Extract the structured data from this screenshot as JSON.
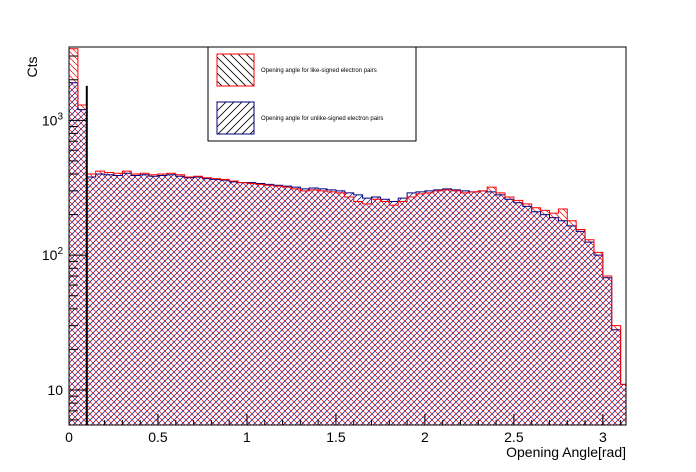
{
  "chart_data": {
    "type": "histogram",
    "xlabel": "Opening Angle[rad]",
    "ylabel": "Cts",
    "xlim": [
      0,
      3.13
    ],
    "ylim": [
      5.5,
      3500
    ],
    "yscale": "log",
    "x_ticks": [
      "0",
      "0.5",
      "1",
      "1.5",
      "2",
      "2.5",
      "3"
    ],
    "y_ticks": [
      {
        "mantissa": "10",
        "exponent": ""
      },
      {
        "mantissa": "10",
        "exponent": "2"
      },
      {
        "mantissa": "10",
        "exponent": "3"
      }
    ],
    "legend_position": "top-center",
    "series": [
      {
        "name": "Opening angle for like-signed electron pairs",
        "color": "#ff0000",
        "hatch": "backslash",
        "bins": [
          [
            0.0,
            3400
          ],
          [
            0.05,
            1300
          ],
          [
            0.1,
            400
          ],
          [
            0.15,
            420
          ],
          [
            0.2,
            410
          ],
          [
            0.25,
            405
          ],
          [
            0.3,
            420
          ],
          [
            0.35,
            400
          ],
          [
            0.4,
            405
          ],
          [
            0.45,
            395
          ],
          [
            0.5,
            400
          ],
          [
            0.55,
            405
          ],
          [
            0.6,
            395
          ],
          [
            0.65,
            380
          ],
          [
            0.7,
            385
          ],
          [
            0.75,
            375
          ],
          [
            0.8,
            370
          ],
          [
            0.85,
            365
          ],
          [
            0.9,
            355
          ],
          [
            0.95,
            345
          ],
          [
            1.0,
            340
          ],
          [
            1.05,
            335
          ],
          [
            1.1,
            330
          ],
          [
            1.15,
            325
          ],
          [
            1.2,
            320
          ],
          [
            1.25,
            310
          ],
          [
            1.3,
            300
          ],
          [
            1.35,
            305
          ],
          [
            1.4,
            300
          ],
          [
            1.45,
            295
          ],
          [
            1.5,
            290
          ],
          [
            1.55,
            270
          ],
          [
            1.6,
            250
          ],
          [
            1.65,
            240
          ],
          [
            1.7,
            260
          ],
          [
            1.75,
            250
          ],
          [
            1.8,
            235
          ],
          [
            1.85,
            250
          ],
          [
            1.9,
            270
          ],
          [
            1.95,
            285
          ],
          [
            2.0,
            290
          ],
          [
            2.05,
            300
          ],
          [
            2.1,
            305
          ],
          [
            2.15,
            300
          ],
          [
            2.2,
            290
          ],
          [
            2.25,
            295
          ],
          [
            2.3,
            300
          ],
          [
            2.35,
            320
          ],
          [
            2.4,
            290
          ],
          [
            2.45,
            270
          ],
          [
            2.5,
            255
          ],
          [
            2.55,
            240
          ],
          [
            2.6,
            225
          ],
          [
            2.65,
            215
          ],
          [
            2.7,
            205
          ],
          [
            2.75,
            220
          ],
          [
            2.8,
            180
          ],
          [
            2.85,
            155
          ],
          [
            2.9,
            130
          ],
          [
            2.95,
            105
          ],
          [
            3.0,
            70
          ],
          [
            3.05,
            30
          ],
          [
            3.1,
            11
          ]
        ]
      },
      {
        "name": "Opening angle for unlike-signed electron pairs",
        "color": "#000080",
        "hatch": "slash",
        "bins": [
          [
            0.0,
            1900
          ],
          [
            0.05,
            1200
          ],
          [
            0.1,
            380
          ],
          [
            0.15,
            400
          ],
          [
            0.2,
            395
          ],
          [
            0.25,
            390
          ],
          [
            0.3,
            405
          ],
          [
            0.35,
            390
          ],
          [
            0.4,
            395
          ],
          [
            0.45,
            385
          ],
          [
            0.5,
            390
          ],
          [
            0.55,
            395
          ],
          [
            0.6,
            385
          ],
          [
            0.65,
            375
          ],
          [
            0.7,
            380
          ],
          [
            0.75,
            370
          ],
          [
            0.8,
            365
          ],
          [
            0.85,
            360
          ],
          [
            0.9,
            350
          ],
          [
            0.95,
            345
          ],
          [
            1.0,
            345
          ],
          [
            1.05,
            340
          ],
          [
            1.1,
            335
          ],
          [
            1.15,
            330
          ],
          [
            1.2,
            325
          ],
          [
            1.25,
            320
          ],
          [
            1.3,
            310
          ],
          [
            1.35,
            315
          ],
          [
            1.4,
            310
          ],
          [
            1.45,
            305
          ],
          [
            1.5,
            300
          ],
          [
            1.55,
            290
          ],
          [
            1.6,
            280
          ],
          [
            1.65,
            265
          ],
          [
            1.7,
            270
          ],
          [
            1.75,
            260
          ],
          [
            1.8,
            250
          ],
          [
            1.85,
            265
          ],
          [
            1.9,
            290
          ],
          [
            1.95,
            295
          ],
          [
            2.0,
            300
          ],
          [
            2.05,
            305
          ],
          [
            2.1,
            310
          ],
          [
            2.15,
            305
          ],
          [
            2.2,
            300
          ],
          [
            2.25,
            295
          ],
          [
            2.3,
            300
          ],
          [
            2.35,
            295
          ],
          [
            2.4,
            280
          ],
          [
            2.45,
            260
          ],
          [
            2.5,
            245
          ],
          [
            2.55,
            230
          ],
          [
            2.6,
            210
          ],
          [
            2.65,
            200
          ],
          [
            2.7,
            190
          ],
          [
            2.75,
            180
          ],
          [
            2.8,
            165
          ],
          [
            2.85,
            150
          ],
          [
            2.9,
            125
          ],
          [
            2.95,
            100
          ],
          [
            3.0,
            68
          ],
          [
            3.05,
            28
          ],
          [
            3.1,
            11
          ]
        ]
      }
    ],
    "annotations": [
      {
        "type": "vertical-line",
        "x": 0.1,
        "y_top": 1800,
        "color": "#000000"
      }
    ]
  }
}
